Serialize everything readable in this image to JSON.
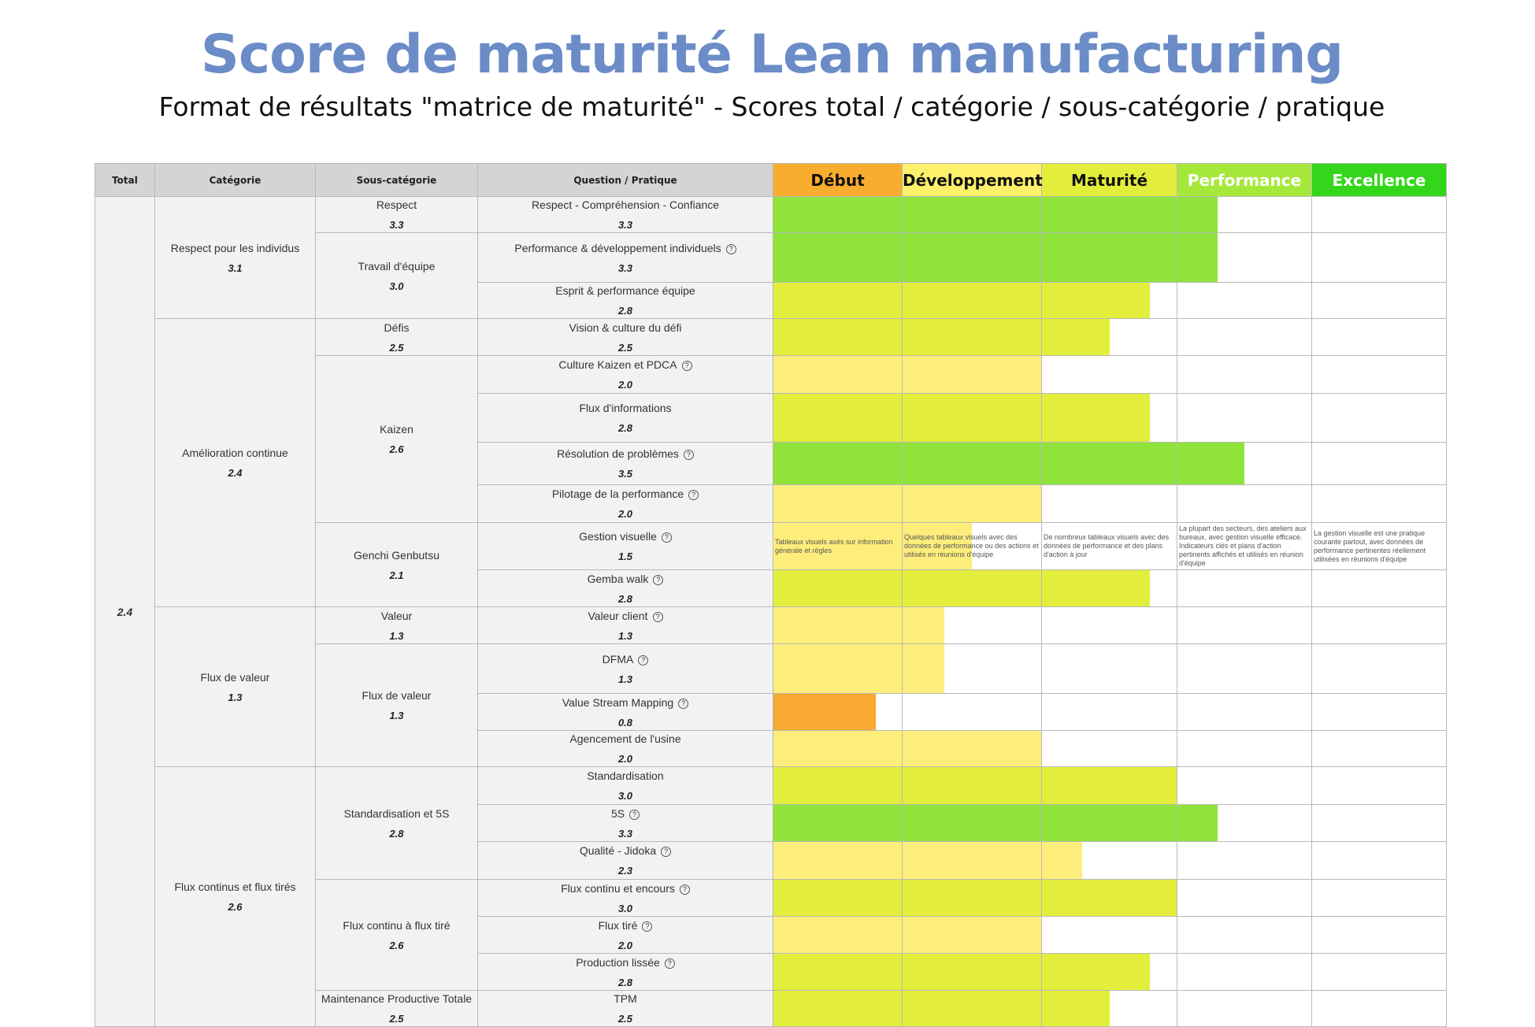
{
  "title": "Score de maturité Lean manufacturing",
  "subtitle": "Format de résultats \"matrice de maturité\" - Scores total / catégorie / sous-catégorie / pratique",
  "headers": {
    "total": "Total",
    "category": "Catégorie",
    "subcategory": "Sous-catégorie",
    "question": "Question / Pratique"
  },
  "levels": [
    {
      "label": "Début",
      "color": "#f9ad2e",
      "text_color": "#111111"
    },
    {
      "label": "Développement",
      "color": "#fdf06b",
      "text_color": "#111111"
    },
    {
      "label": "Maturité",
      "color": "#e3ee3c",
      "text_color": "#111111"
    },
    {
      "label": "Performance",
      "color": "#a6e83a",
      "text_color": "#ffffff"
    },
    {
      "label": "Excellence",
      "color": "#33d61a",
      "text_color": "#ffffff"
    }
  ],
  "score_colors": {
    "low": "#f7a932",
    "medium": "#fdee7c",
    "good": "#e3ee3c",
    "high": "#8fe33b"
  },
  "help_icon": "?",
  "total": "2.4",
  "categories": [
    {
      "name": "Respect pour les individus",
      "score": "3.1",
      "subs": [
        {
          "name": "Respect",
          "score": "3.3",
          "questions": [
            {
              "name": "Respect - Compréhension - Confiance",
              "score": "3.3",
              "help": false
            }
          ]
        },
        {
          "name": "Travail d'équipe",
          "score": "3.0",
          "questions": [
            {
              "name": "Performance & développement individuels",
              "score": "3.3",
              "help": true
            },
            {
              "name": "Esprit & performance équipe",
              "score": "2.8",
              "help": false
            }
          ]
        }
      ]
    },
    {
      "name": "Amélioration continue",
      "score": "2.4",
      "subs": [
        {
          "name": "Défis",
          "score": "2.5",
          "questions": [
            {
              "name": "Vision & culture du défi",
              "score": "2.5",
              "help": false
            }
          ]
        },
        {
          "name": "Kaizen",
          "score": "2.6",
          "questions": [
            {
              "name": "Culture Kaizen et PDCA",
              "score": "2.0",
              "help": true
            },
            {
              "name": "Flux d'informations",
              "score": "2.8",
              "help": false
            },
            {
              "name": "Résolution de problèmes",
              "score": "3.5",
              "help": true
            },
            {
              "name": "Pilotage de la performance",
              "score": "2.0",
              "help": true
            }
          ]
        },
        {
          "name": "Genchi Genbutsu",
          "score": "2.1",
          "questions": [
            {
              "name": "Gestion visuelle",
              "score": "1.5",
              "help": true,
              "levels_text": [
                "Tableaux visuels axés sur information générale et règles",
                "Quelques tableaux visuels avec des données de performance ou des actions et utilisés en réunions d'équipe",
                "De nombreux tableaux visuels avec des données de performance et des plans d'action à jour",
                "La plupart des secteurs, des ateliers aux bureaux, avec gestion visuelle efficace. Indicateurs clés et plans d'action pertinents affichés et utilisés en réunion d'équipe",
                "La gestion visuelle est une pratique courante partout, avec données de performance pertinentes réellement utilisées en réunions d'équipe"
              ]
            },
            {
              "name": "Gemba walk",
              "score": "2.8",
              "help": true
            }
          ]
        }
      ]
    },
    {
      "name": "Flux de valeur",
      "score": "1.3",
      "subs": [
        {
          "name": "Valeur",
          "score": "1.3",
          "questions": [
            {
              "name": "Valeur client",
              "score": "1.3",
              "help": true
            }
          ]
        },
        {
          "name": "Flux de valeur",
          "score": "1.3",
          "questions": [
            {
              "name": "DFMA",
              "score": "1.3",
              "help": true
            },
            {
              "name": "Value Stream Mapping",
              "score": "0.8",
              "help": true
            },
            {
              "name": "Agencement de l'usine",
              "score": "2.0",
              "help": false
            }
          ]
        }
      ]
    },
    {
      "name": "Flux continus et flux tirés",
      "score": "2.6",
      "subs": [
        {
          "name": "Standardisation et 5S",
          "score": "2.8",
          "questions": [
            {
              "name": "Standardisation",
              "score": "3.0",
              "help": false
            },
            {
              "name": "5S",
              "score": "3.3",
              "help": true
            },
            {
              "name": "Qualité - Jidoka",
              "score": "2.3",
              "help": true
            }
          ]
        },
        {
          "name": "Flux continu à flux tiré",
          "score": "2.6",
          "questions": [
            {
              "name": "Flux continu et encours",
              "score": "3.0",
              "help": true
            },
            {
              "name": "Flux tiré",
              "score": "2.0",
              "help": true
            },
            {
              "name": "Production lissée",
              "score": "2.8",
              "help": true
            }
          ]
        },
        {
          "name": "Maintenance Productive Totale",
          "score": "2.5",
          "questions": [
            {
              "name": "TPM",
              "score": "2.5",
              "help": false
            }
          ]
        }
      ]
    }
  ]
}
